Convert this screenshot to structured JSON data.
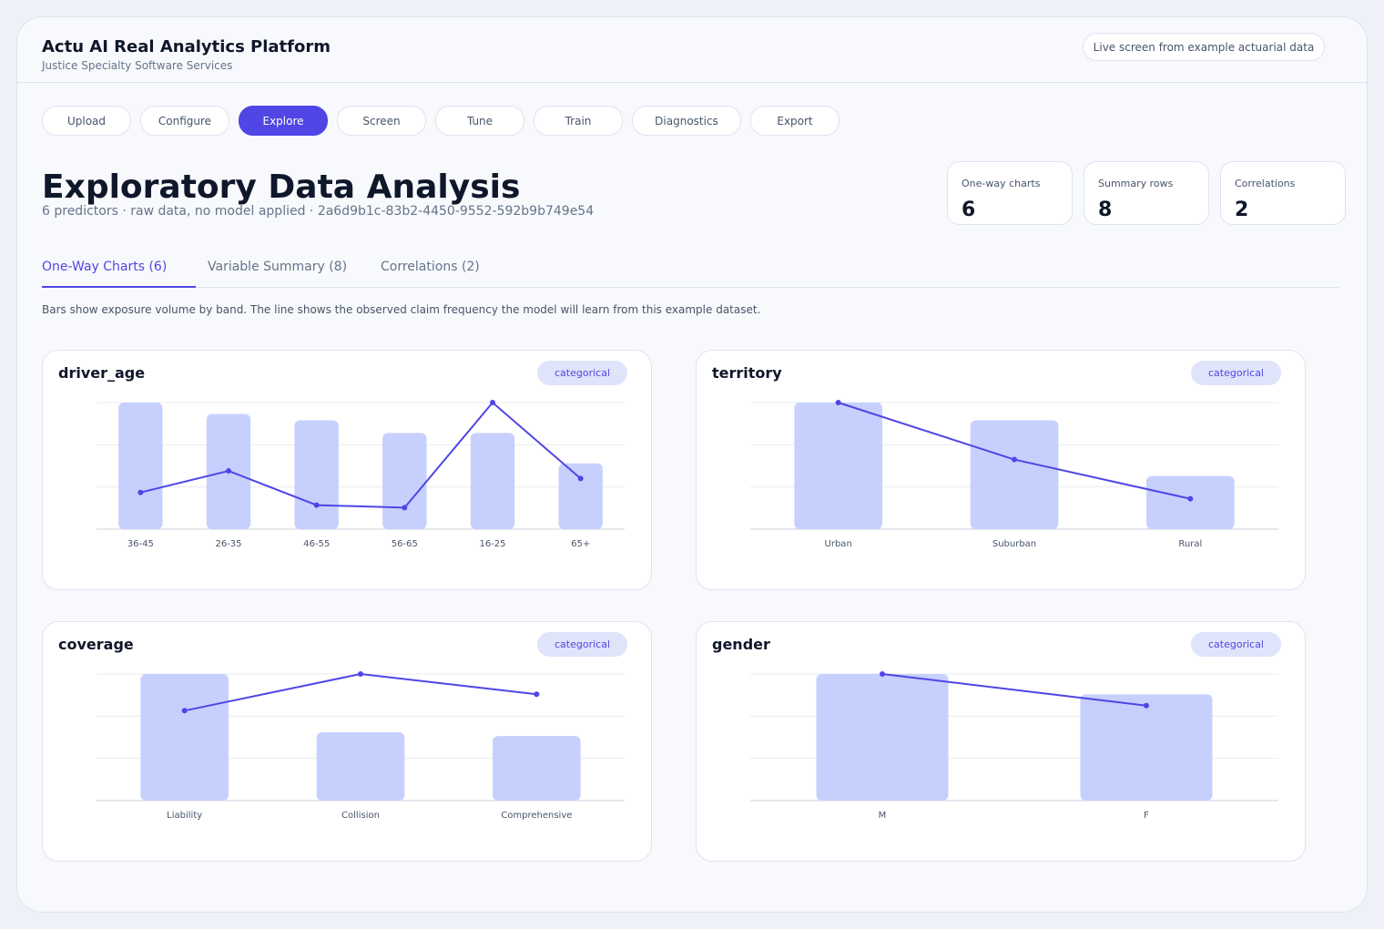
{
  "header": {
    "title": "Actu AI Real Analytics Platform",
    "subtitle": "Justice Specialty Software Services",
    "badge": "Live screen from example actuarial data"
  },
  "nav": [
    "Upload",
    "Configure",
    "Explore",
    "Screen",
    "Tune",
    "Train",
    "Diagnostics",
    "Export"
  ],
  "active_nav": 2,
  "page": {
    "title": "Exploratory Data Analysis",
    "subtitle": "6 predictors · raw data, no model applied · 2a6d9b1c-83b2-4450-9552-592b9b749e54"
  },
  "stats": [
    {
      "label": "One-way charts",
      "value": 6
    },
    {
      "label": "Summary rows",
      "value": 8
    },
    {
      "label": "Correlations",
      "value": 2
    }
  ],
  "tabs": [
    "One-Way Charts (6)",
    "Variable Summary (8)",
    "Correlations (2)"
  ],
  "active_tab": 0,
  "description": "Bars show exposure volume by band. The line shows the observed claim frequency the model will learn from this example dataset.",
  "chart_data": [
    {
      "type": "bar",
      "title": "driver_age",
      "badge": "categorical",
      "categories": [
        "36-45",
        "26-35",
        "46-55",
        "56-65",
        "16-25",
        "65+"
      ],
      "ylim": [
        0,
        1
      ],
      "y2lim": [
        0,
        1
      ],
      "series": [
        {
          "type": "bar",
          "color": "#c7d0fd",
          "values": [
            1.0,
            0.91,
            0.86,
            0.76,
            0.76,
            0.52
          ]
        },
        {
          "type": "line",
          "axis": "y2",
          "color": "#4f46e5",
          "values": [
            0.29,
            0.46,
            0.19,
            0.17,
            1.0,
            0.4
          ]
        }
      ]
    },
    {
      "type": "bar",
      "title": "territory",
      "badge": "categorical",
      "categories": [
        "Urban",
        "Suburban",
        "Rural"
      ],
      "ylim": [
        0,
        1
      ],
      "y2lim": [
        0,
        1
      ],
      "series": [
        {
          "type": "bar",
          "color": "#c7d0fd",
          "values": [
            1.0,
            0.86,
            0.42
          ]
        },
        {
          "type": "line",
          "axis": "y2",
          "color": "#4f46e5",
          "values": [
            1.0,
            0.55,
            0.24
          ]
        }
      ]
    },
    {
      "type": "bar",
      "title": "coverage",
      "badge": "categorical",
      "categories": [
        "Liability",
        "Collision",
        "Comprehensive"
      ],
      "ylim": [
        0,
        1
      ],
      "y2lim": [
        0,
        1
      ],
      "series": [
        {
          "type": "bar",
          "color": "#c7d0fd",
          "values": [
            1.0,
            0.54,
            0.51
          ]
        },
        {
          "type": "line",
          "axis": "y2",
          "color": "#4f46e5",
          "values": [
            0.71,
            1.0,
            0.84
          ]
        }
      ]
    },
    {
      "type": "bar",
      "title": "gender",
      "badge": "categorical",
      "categories": [
        "M",
        "F"
      ],
      "ylim": [
        0,
        1
      ],
      "y2lim": [
        0,
        1
      ],
      "series": [
        {
          "type": "bar",
          "color": "#c7d0fd",
          "values": [
            1.0,
            0.84
          ]
        },
        {
          "type": "line",
          "axis": "y2",
          "color": "#4f46e5",
          "values": [
            1.0,
            0.75
          ]
        }
      ]
    }
  ]
}
